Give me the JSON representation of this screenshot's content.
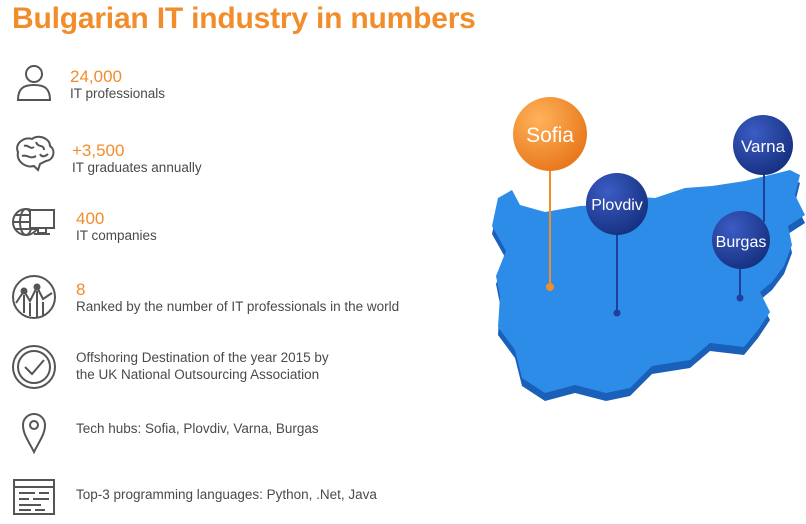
{
  "title": "Bulgarian IT industry in numbers",
  "accent_color": "#f28d2c",
  "stats": [
    {
      "icon": "person-icon",
      "number": "24,000",
      "label": "IT professionals"
    },
    {
      "icon": "brain-icon",
      "number": "+3,500",
      "label": "IT graduates annually"
    },
    {
      "icon": "globe-computer-icon",
      "number": "400",
      "label": "IT companies"
    },
    {
      "icon": "ranking-chart-icon",
      "number": "8",
      "label": "Ranked  by the number of IT professionals in the world"
    }
  ],
  "facts": [
    {
      "icon": "checkmark-badge-icon",
      "line1": "Offshoring Destination of the year 2015 by",
      "line2": "the UK National Outsourcing Association"
    },
    {
      "icon": "location-pin-icon",
      "text": "Tech hubs: Sofia, Plovdiv, Varna, Burgas"
    },
    {
      "icon": "code-window-icon",
      "text": "Top-3 programming languages: Python, .Net, Java"
    }
  ],
  "map": {
    "country_color": "#2c8ce8",
    "cities": [
      {
        "name": "Sofia",
        "color": "#f28d2c"
      },
      {
        "name": "Plovdiv",
        "color": "#1f3f9c"
      },
      {
        "name": "Varna",
        "color": "#1f3f9c"
      },
      {
        "name": "Burgas",
        "color": "#1f3f9c"
      }
    ]
  }
}
